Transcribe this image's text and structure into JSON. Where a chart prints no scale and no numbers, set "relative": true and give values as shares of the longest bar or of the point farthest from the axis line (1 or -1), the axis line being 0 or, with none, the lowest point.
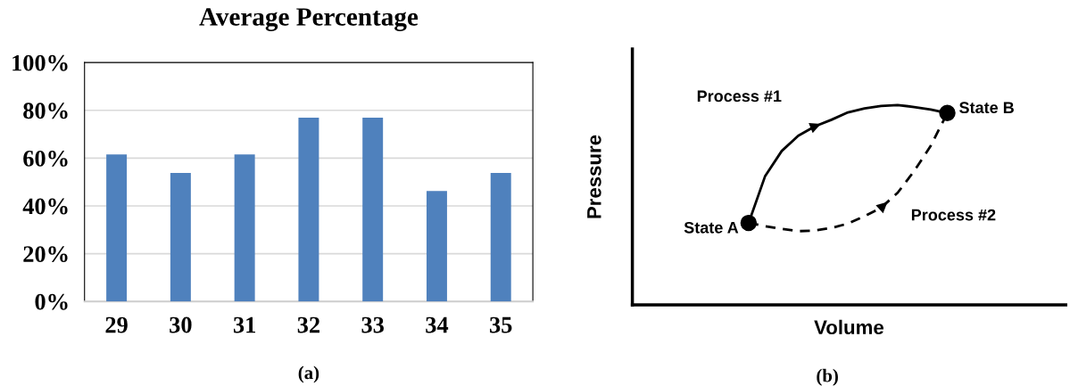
{
  "chart_data": [
    {
      "type": "bar",
      "title": "Average Percentage",
      "categories": [
        "29",
        "30",
        "31",
        "32",
        "33",
        "34",
        "35"
      ],
      "values": [
        61.5,
        53.8,
        61.5,
        76.9,
        76.9,
        46.2,
        53.8
      ],
      "color": "#4f81bd",
      "ylim": [
        0,
        100
      ],
      "yticks": [
        {
          "value": 0,
          "label": "0%"
        },
        {
          "value": 20,
          "label": "20%"
        },
        {
          "value": 40,
          "label": "40%"
        },
        {
          "value": 60,
          "label": "60%"
        },
        {
          "value": 80,
          "label": "80%"
        },
        {
          "value": 100,
          "label": "100%"
        }
      ],
      "grid": "y",
      "annotations": [
        "(a)"
      ]
    },
    {
      "type": "line",
      "relative": true,
      "xlabel": "Volume",
      "ylabel": "Pressure",
      "tick_labels": false,
      "annotations": [
        "State A",
        "State B",
        "(b)"
      ],
      "categories": [
        null,
        null,
        null,
        null,
        null,
        null,
        null,
        null,
        null,
        null,
        null,
        null,
        null
      ],
      "series": [
        {
          "name": "Process #1",
          "color": "#000000",
          "line_style": "solid",
          "values": [
            0.41,
            0.645,
            0.77,
            0.846,
            0.893,
            0.926,
            0.963,
            0.983,
            0.995,
            1.0,
            0.99,
            0.977,
            0.96
          ]
        },
        {
          "name": "Process #2",
          "color": "#000000",
          "line_style": "dashed",
          "values": [
            0.41,
            0.394,
            0.38,
            0.369,
            0.372,
            0.385,
            0.407,
            0.444,
            0.486,
            0.561,
            0.67,
            0.796,
            0.96
          ]
        }
      ]
    }
  ]
}
